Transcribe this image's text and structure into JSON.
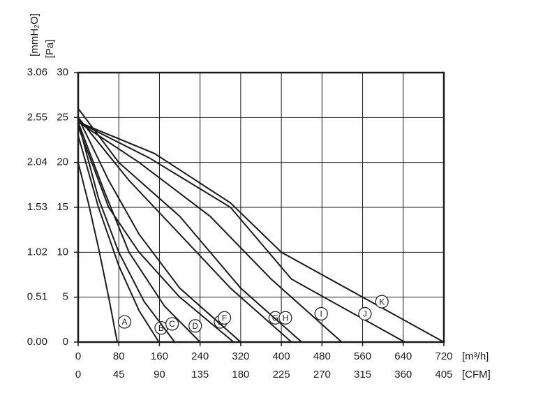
{
  "chart_data": {
    "type": "line",
    "y_label": "[Pa]",
    "y2_label": "[mmH₂O]",
    "x_label": "[m³/h]",
    "x2_label": "[CFM]",
    "xlim": [
      0,
      720
    ],
    "xticks": [
      0,
      80,
      160,
      240,
      320,
      400,
      480,
      560,
      640,
      720
    ],
    "x2lim": [
      0,
      405
    ],
    "x2ticks": [
      0,
      45,
      90,
      135,
      180,
      225,
      270,
      315,
      360,
      405
    ],
    "ylim": [
      0,
      30
    ],
    "yticks": [
      0,
      5,
      10,
      15,
      20,
      25,
      30
    ],
    "y2lim": [
      0,
      3.06
    ],
    "y2ticks": [
      {
        "value": 0,
        "label": "0.00"
      },
      0.51,
      1.02,
      1.53,
      2.04,
      2.55,
      3.06
    ],
    "grid": true,
    "color": "#1a1a1a",
    "series": [
      {
        "name": "A",
        "x": [
          0,
          20,
          40,
          60,
          77
        ],
        "values": [
          20,
          15.5,
          10.5,
          5,
          0
        ]
      },
      {
        "name": "B",
        "x": [
          0,
          40,
          80,
          120,
          159
        ],
        "values": [
          23,
          15,
          8.5,
          3.5,
          0
        ]
      },
      {
        "name": "C",
        "x": [
          0,
          40,
          80,
          130,
          190
        ],
        "values": [
          24.5,
          16,
          10,
          4.5,
          0
        ]
      },
      {
        "name": "D",
        "x": [
          0,
          50,
          100,
          170,
          240
        ],
        "values": [
          24.5,
          17,
          10,
          4,
          0
        ]
      },
      {
        "name": "E",
        "x": [
          0,
          60,
          120,
          200,
          306
        ],
        "values": [
          24,
          15,
          10,
          5,
          0
        ]
      },
      {
        "name": "F",
        "x": [
          0,
          60,
          120,
          200,
          320
        ],
        "values": [
          25,
          18,
          12,
          6,
          0
        ]
      },
      {
        "name": "G",
        "x": [
          0,
          100,
          200,
          300,
          420
        ],
        "values": [
          25,
          18,
          12,
          6,
          0
        ]
      },
      {
        "name": "H",
        "x": [
          0,
          80,
          200,
          320,
          440
        ],
        "values": [
          26,
          20,
          14,
          6,
          0
        ]
      },
      {
        "name": "I",
        "x": [
          0,
          120,
          260,
          380,
          519
        ],
        "values": [
          24.5,
          20,
          14,
          7,
          0
        ]
      },
      {
        "name": "J",
        "x": [
          0,
          140,
          300,
          420,
          643
        ],
        "values": [
          24.5,
          20.5,
          15,
          7,
          0
        ]
      },
      {
        "name": "K",
        "x": [
          0,
          150,
          300,
          400,
          720
        ],
        "values": [
          24.5,
          21,
          15.5,
          10,
          0
        ]
      }
    ]
  }
}
